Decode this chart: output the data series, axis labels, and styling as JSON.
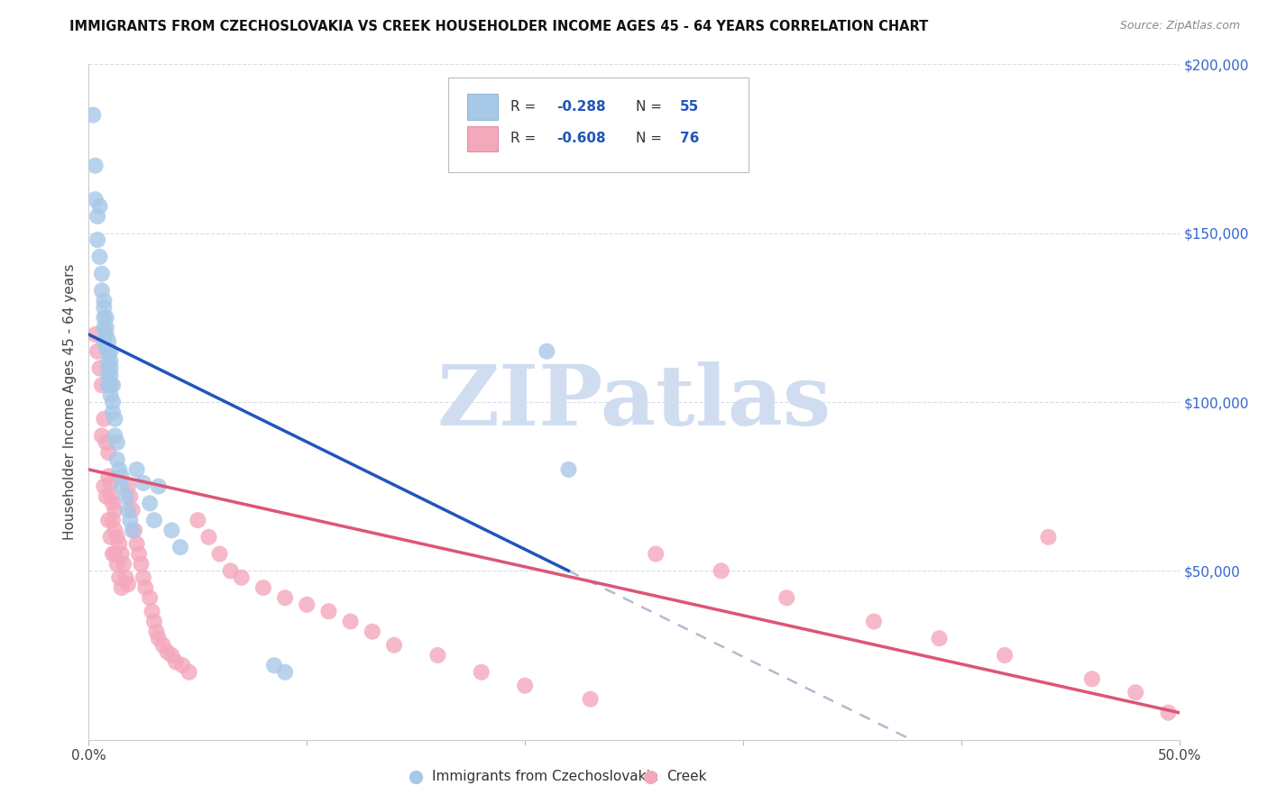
{
  "title": "IMMIGRANTS FROM CZECHOSLOVAKIA VS CREEK HOUSEHOLDER INCOME AGES 45 - 64 YEARS CORRELATION CHART",
  "source": "Source: ZipAtlas.com",
  "ylabel": "Householder Income Ages 45 - 64 years",
  "xmin": 0.0,
  "xmax": 0.5,
  "ymin": 0,
  "ymax": 200000,
  "yticks": [
    0,
    50000,
    100000,
    150000,
    200000
  ],
  "ytick_labels_right": [
    "",
    "$50,000",
    "$100,000",
    "$150,000",
    "$200,000"
  ],
  "xtick_positions": [
    0.0,
    0.1,
    0.2,
    0.3,
    0.4,
    0.5
  ],
  "xtick_labels": [
    "0.0%",
    "",
    "",
    "",
    "",
    "50.0%"
  ],
  "legend_r1": "-0.288",
  "legend_n1": "55",
  "legend_r2": "-0.608",
  "legend_n2": "76",
  "color_blue_fill": "#a8c8e8",
  "color_pink_fill": "#f4a8bc",
  "color_blue_line": "#2255bb",
  "color_pink_line": "#dd5577",
  "color_dashed_ext": "#b0bcd0",
  "color_grid": "#d8dee8",
  "watermark_text": "ZIPatlas",
  "watermark_color": "#d0ddf0",
  "blue_line_x0": 0.0,
  "blue_line_x1": 0.22,
  "blue_line_y0": 120000,
  "blue_line_y1": 50000,
  "pink_line_x0": 0.0,
  "pink_line_x1": 0.5,
  "pink_line_y0": 80000,
  "pink_line_y1": 8000,
  "blue_scatter_x": [
    0.002,
    0.003,
    0.003,
    0.004,
    0.004,
    0.005,
    0.005,
    0.006,
    0.006,
    0.007,
    0.007,
    0.007,
    0.007,
    0.007,
    0.008,
    0.008,
    0.008,
    0.008,
    0.009,
    0.009,
    0.009,
    0.009,
    0.009,
    0.009,
    0.01,
    0.01,
    0.01,
    0.01,
    0.01,
    0.01,
    0.011,
    0.011,
    0.011,
    0.012,
    0.012,
    0.013,
    0.013,
    0.014,
    0.015,
    0.015,
    0.017,
    0.018,
    0.019,
    0.02,
    0.022,
    0.025,
    0.028,
    0.03,
    0.032,
    0.038,
    0.042,
    0.085,
    0.09,
    0.21,
    0.22
  ],
  "blue_scatter_y": [
    185000,
    170000,
    160000,
    155000,
    148000,
    143000,
    158000,
    138000,
    133000,
    130000,
    128000,
    125000,
    122000,
    118000,
    125000,
    122000,
    120000,
    116000,
    118000,
    115000,
    112000,
    110000,
    108000,
    105000,
    115000,
    112000,
    110000,
    108000,
    105000,
    102000,
    105000,
    100000,
    97000,
    95000,
    90000,
    88000,
    83000,
    80000,
    78000,
    75000,
    72000,
    68000,
    65000,
    62000,
    80000,
    76000,
    70000,
    65000,
    75000,
    62000,
    57000,
    22000,
    20000,
    115000,
    80000
  ],
  "pink_scatter_x": [
    0.003,
    0.004,
    0.005,
    0.006,
    0.006,
    0.007,
    0.007,
    0.008,
    0.008,
    0.009,
    0.009,
    0.009,
    0.01,
    0.01,
    0.01,
    0.011,
    0.011,
    0.011,
    0.012,
    0.012,
    0.012,
    0.013,
    0.013,
    0.014,
    0.014,
    0.015,
    0.015,
    0.016,
    0.017,
    0.018,
    0.018,
    0.019,
    0.02,
    0.021,
    0.022,
    0.023,
    0.024,
    0.025,
    0.026,
    0.028,
    0.029,
    0.03,
    0.031,
    0.032,
    0.034,
    0.036,
    0.038,
    0.04,
    0.043,
    0.046,
    0.05,
    0.055,
    0.06,
    0.065,
    0.07,
    0.08,
    0.09,
    0.1,
    0.11,
    0.12,
    0.13,
    0.14,
    0.16,
    0.18,
    0.2,
    0.23,
    0.26,
    0.29,
    0.32,
    0.36,
    0.39,
    0.42,
    0.44,
    0.46,
    0.48,
    0.495
  ],
  "pink_scatter_y": [
    120000,
    115000,
    110000,
    105000,
    90000,
    95000,
    75000,
    88000,
    72000,
    85000,
    78000,
    65000,
    76000,
    72000,
    60000,
    70000,
    65000,
    55000,
    68000,
    62000,
    55000,
    60000,
    52000,
    58000,
    48000,
    55000,
    45000,
    52000,
    48000,
    46000,
    75000,
    72000,
    68000,
    62000,
    58000,
    55000,
    52000,
    48000,
    45000,
    42000,
    38000,
    35000,
    32000,
    30000,
    28000,
    26000,
    25000,
    23000,
    22000,
    20000,
    65000,
    60000,
    55000,
    50000,
    48000,
    45000,
    42000,
    40000,
    38000,
    35000,
    32000,
    28000,
    25000,
    20000,
    16000,
    12000,
    55000,
    50000,
    42000,
    35000,
    30000,
    25000,
    60000,
    18000,
    14000,
    8000
  ]
}
